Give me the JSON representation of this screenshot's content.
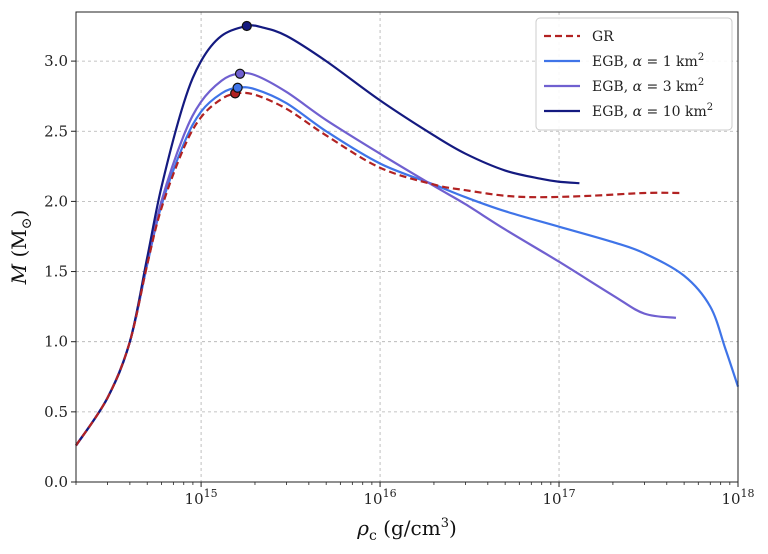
{
  "chart_data": {
    "type": "line",
    "xlabel": "ρc (g/cm3)",
    "ylabel": "M (M⊙)",
    "xscale": "log",
    "xlim": [
      200000000000000.0,
      1e+18
    ],
    "ylim": [
      0,
      3.35
    ],
    "grid": true,
    "legend_position": "top-right",
    "x_ticks": [
      {
        "value": 1000000000000000.0,
        "label": "10^15"
      },
      {
        "value": 1e+16,
        "label": "10^16"
      },
      {
        "value": 1e+17,
        "label": "10^17"
      },
      {
        "value": 1e+18,
        "label": "10^18"
      }
    ],
    "y_ticks": [
      0.0,
      0.5,
      1.0,
      1.5,
      2.0,
      2.5,
      3.0
    ],
    "y_tick_labels": [
      "0.0",
      "0.5",
      "1.0",
      "1.5",
      "2.0",
      "2.5",
      "3.0"
    ],
    "series": [
      {
        "name": "GR",
        "color": "#b22222",
        "style": "dashed",
        "x": [
          200000000000000.0,
          300000000000000.0,
          400000000000000.0,
          500000000000000.0,
          600000000000000.0,
          800000000000000.0,
          1000000000000000.0,
          1300000000000000.0,
          1600000000000000.0,
          2000000000000000.0,
          3000000000000000.0,
          5000000000000000.0,
          1e+16,
          2e+16,
          3e+16,
          5e+16,
          8e+16,
          1.5e+17,
          3e+17,
          4.8e+17
        ],
        "y": [
          0.26,
          0.6,
          1.0,
          1.55,
          1.95,
          2.38,
          2.6,
          2.73,
          2.77,
          2.76,
          2.66,
          2.47,
          2.24,
          2.12,
          2.08,
          2.04,
          2.03,
          2.04,
          2.06,
          2.06
        ],
        "max_point": {
          "x": 1550000000000000.0,
          "y": 2.77
        }
      },
      {
        "name": "EGB, α = 1 km²",
        "color": "#3f74e8",
        "style": "solid",
        "x": [
          200000000000000.0,
          300000000000000.0,
          400000000000000.0,
          500000000000000.0,
          600000000000000.0,
          800000000000000.0,
          1000000000000000.0,
          1300000000000000.0,
          1600000000000000.0,
          2000000000000000.0,
          3000000000000000.0,
          5000000000000000.0,
          1e+16,
          2e+16,
          3e+16,
          5e+16,
          1e+17,
          2e+17,
          3e+17,
          5e+17,
          7e+17,
          8.5e+17,
          1e+18
        ],
        "y": [
          0.26,
          0.6,
          1.0,
          1.55,
          1.97,
          2.41,
          2.64,
          2.77,
          2.81,
          2.8,
          2.7,
          2.5,
          2.27,
          2.12,
          2.03,
          1.93,
          1.82,
          1.71,
          1.63,
          1.47,
          1.25,
          0.95,
          0.68
        ],
        "max_point": {
          "x": 1600000000000000.0,
          "y": 2.81
        }
      },
      {
        "name": "EGB, α = 3 km²",
        "color": "#7060d0",
        "style": "solid",
        "x": [
          200000000000000.0,
          300000000000000.0,
          400000000000000.0,
          500000000000000.0,
          600000000000000.0,
          800000000000000.0,
          1000000000000000.0,
          1300000000000000.0,
          1600000000000000.0,
          2000000000000000.0,
          3000000000000000.0,
          5000000000000000.0,
          1e+16,
          2e+16,
          3e+16,
          5e+16,
          1e+17,
          2e+17,
          3e+17,
          4.5e+17
        ],
        "y": [
          0.26,
          0.6,
          1.0,
          1.57,
          2.0,
          2.47,
          2.71,
          2.86,
          2.91,
          2.9,
          2.78,
          2.58,
          2.34,
          2.11,
          1.98,
          1.8,
          1.57,
          1.33,
          1.2,
          1.17
        ],
        "max_point": {
          "x": 1650000000000000.0,
          "y": 2.91
        }
      },
      {
        "name": "EGB, α = 10 km²",
        "color": "#141a80",
        "style": "solid",
        "x": [
          200000000000000.0,
          300000000000000.0,
          400000000000000.0,
          500000000000000.0,
          600000000000000.0,
          800000000000000.0,
          1000000000000000.0,
          1300000000000000.0,
          1800000000000000.0,
          2200000000000000.0,
          3000000000000000.0,
          5000000000000000.0,
          1e+16,
          2e+16,
          3e+16,
          5e+16,
          8e+16,
          1e+17,
          1.3e+17
        ],
        "y": [
          0.26,
          0.6,
          1.0,
          1.6,
          2.1,
          2.7,
          3.0,
          3.18,
          3.25,
          3.24,
          3.18,
          3.0,
          2.72,
          2.47,
          2.34,
          2.22,
          2.16,
          2.14,
          2.13
        ],
        "max_point": {
          "x": 1800000000000000.0,
          "y": 3.25
        }
      }
    ],
    "legend": [
      {
        "label": "GR",
        "color": "#b22222",
        "style": "dashed"
      },
      {
        "label": "EGB, α = 1 km²",
        "color": "#3f74e8",
        "style": "solid"
      },
      {
        "label": "EGB, α = 3 km²",
        "color": "#7060d0",
        "style": "solid"
      },
      {
        "label": "EGB, α = 10 km²",
        "color": "#141a80",
        "style": "solid"
      }
    ]
  }
}
